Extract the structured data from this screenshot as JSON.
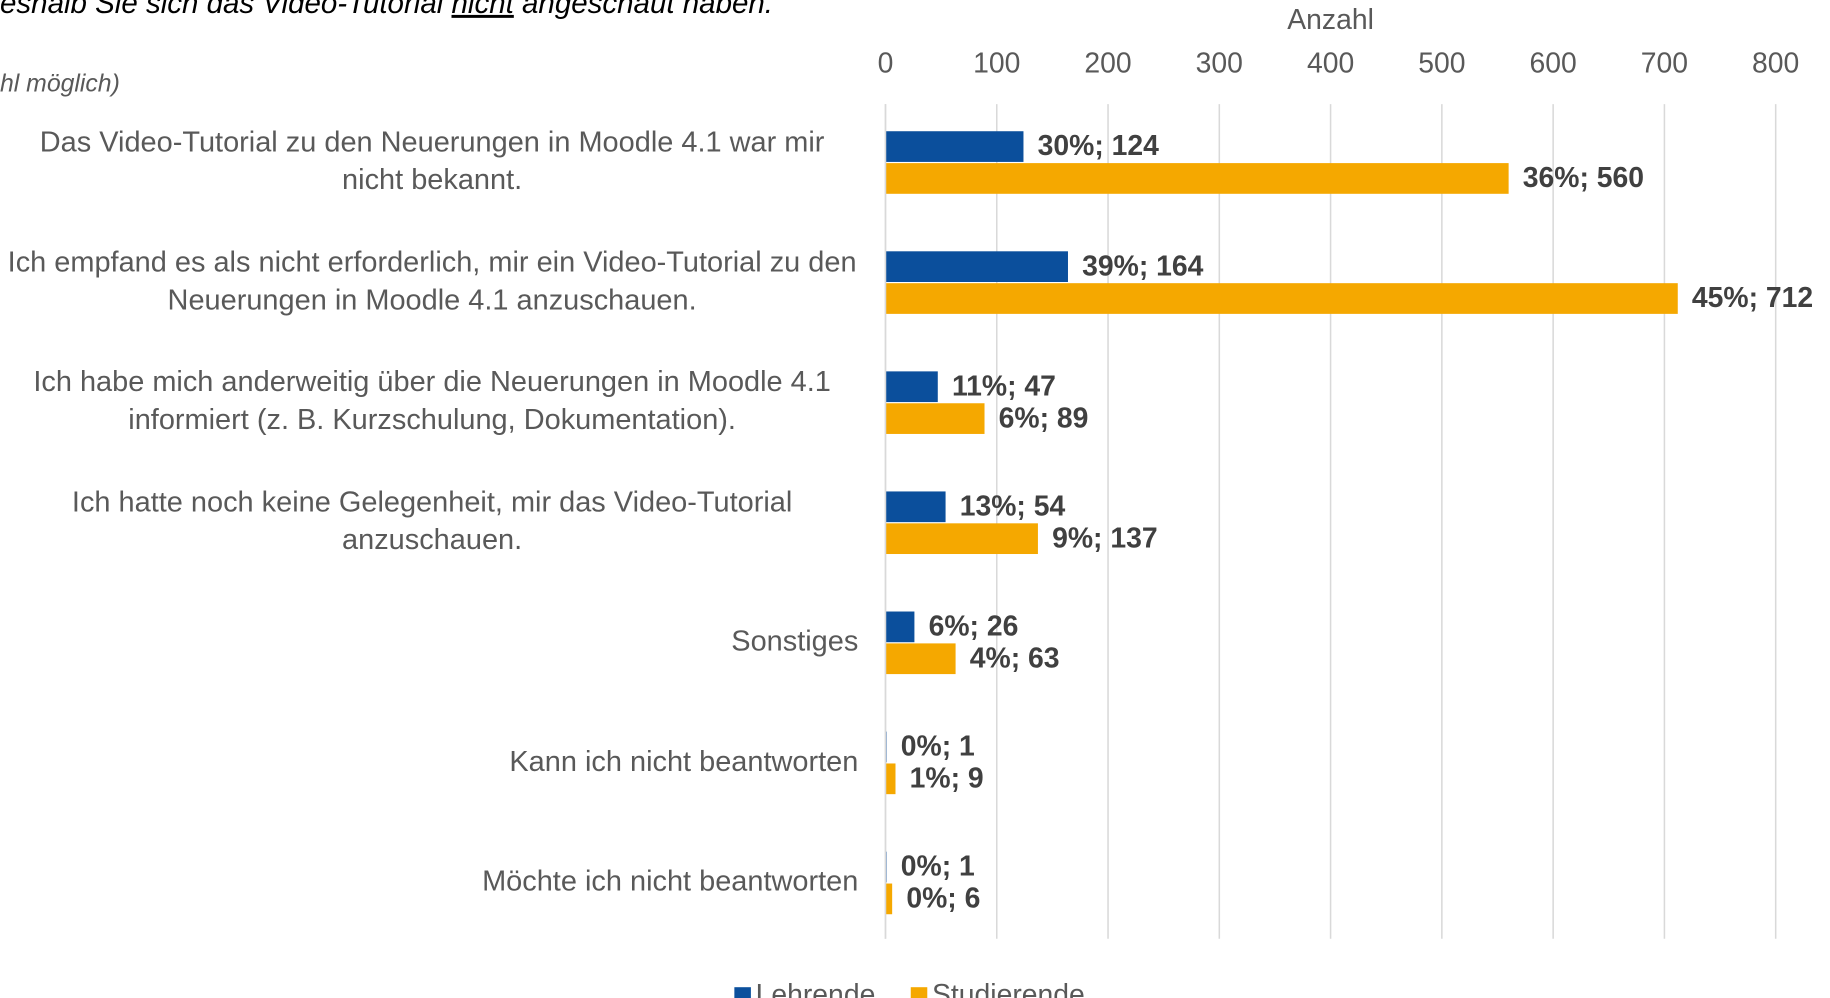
{
  "chart_data": {
    "type": "barh",
    "title": [
      "eshalb Sie sich das Video-Tutorial ",
      "nicht",
      " angeschaut haben."
    ],
    "subtitle": "hl möglich)",
    "xlabel": "Anzahl",
    "categories": [
      "Das Video-Tutorial zu den Neuerungen in Moodle 4.1 war mir nicht bekannt.",
      "Ich empfand es als nicht erforderlich, mir ein Video-Tutorial zu den Neuerungen in Moodle 4.1 anzuschauen.",
      "Ich habe mich anderweitig über die Neuerungen in Moodle 4.1 informiert (z. B. Kurzschulung, Dokumentation).",
      "Ich hatte noch keine Gelegenheit, mir das Video-Tutorial anzuschauen.",
      "Sonstiges",
      "Kann ich nicht beantworten",
      "Möchte ich nicht beantworten"
    ],
    "series": [
      {
        "name": "Lehrende",
        "color": "#0b4f9c",
        "values": [
          124,
          164,
          47,
          54,
          26,
          1,
          1
        ],
        "value_labels": [
          "30%; 124",
          "39%; 164",
          "11%; 47",
          "13%; 54",
          "6%; 26",
          "0%; 1",
          "0%; 1"
        ]
      },
      {
        "name": "Studierende",
        "color": "#f5a800",
        "values": [
          560,
          712,
          89,
          137,
          63,
          9,
          6
        ],
        "value_labels": [
          "36%; 560",
          "45%; 712",
          "6%; 89",
          "9%; 137",
          "4%; 63",
          "1%; 9",
          "0%; 6"
        ]
      }
    ],
    "xlim": [
      0,
      800
    ],
    "xticks": [
      0,
      100,
      200,
      300,
      400,
      500,
      600,
      700,
      800
    ],
    "grid": true,
    "legend": "bottom"
  }
}
